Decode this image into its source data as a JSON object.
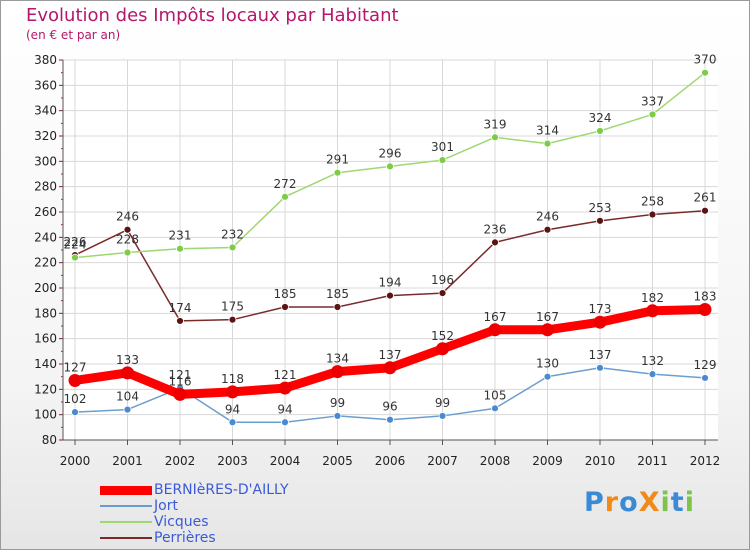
{
  "chart_data": {
    "type": "line",
    "title": "Evolution des Impôts locaux par Habitant",
    "subtitle": "(en € et par an)",
    "xlabel": "",
    "ylabel": "",
    "ylim": [
      80,
      380
    ],
    "yticks": [
      "80",
      "100",
      "120",
      "140",
      "160",
      "180",
      "200",
      "220",
      "240",
      "260",
      "280",
      "300",
      "320",
      "340",
      "360",
      "380"
    ],
    "categories": [
      "2000",
      "2001",
      "2002",
      "2003",
      "2004",
      "2005",
      "2006",
      "2007",
      "2008",
      "2009",
      "2010",
      "2011",
      "2012"
    ],
    "grid": true,
    "series": [
      {
        "name": "BERNIèRES-D'AILLY",
        "color": "#ff0000",
        "marker": "#ee0000",
        "values": [
          127,
          133,
          116,
          118,
          121,
          134,
          137,
          152,
          167,
          167,
          173,
          182,
          183
        ],
        "labels": [
          "127",
          "133",
          "116",
          "118",
          "121",
          "134",
          "137",
          "152",
          "167",
          "167",
          "173",
          "182",
          "183"
        ]
      },
      {
        "name": "Jort",
        "color": "#6b9ed0",
        "marker": "#4a8ad0",
        "values": [
          102,
          104,
          121,
          94,
          94,
          99,
          96,
          99,
          105,
          130,
          137,
          132,
          129
        ],
        "labels": [
          "102",
          "104",
          "121",
          "94",
          "94",
          "99",
          "96",
          "99",
          "105",
          "130",
          "137",
          "132",
          "129"
        ]
      },
      {
        "name": "Vicques",
        "color": "#9ed870",
        "marker": "#7ccc48",
        "values": [
          224,
          228,
          231,
          232,
          272,
          291,
          296,
          301,
          319,
          314,
          324,
          337,
          370
        ],
        "labels": [
          "224",
          "228",
          "231",
          "232",
          "272",
          "291",
          "296",
          "301",
          "319",
          "314",
          "324",
          "337",
          "370"
        ]
      },
      {
        "name": "Perrières",
        "color": "#7a2a2a",
        "marker": "#5a1414",
        "values": [
          226,
          246,
          174,
          175,
          185,
          185,
          194,
          196,
          236,
          246,
          253,
          258,
          261
        ],
        "labels": [
          "226",
          "246",
          "174",
          "175",
          "185",
          "185",
          "194",
          "196",
          "236",
          "246",
          "253",
          "258",
          "261"
        ]
      }
    ]
  },
  "logo": {
    "text": "ProXiti",
    "letters": [
      "P",
      "r",
      "o",
      "X",
      "i",
      "t",
      "i"
    ],
    "colors": [
      "#3a8ad6",
      "#f08a18",
      "#3a8ad6",
      "#f08a18",
      "#7cc44a",
      "#3a8ad6",
      "#7cc44a"
    ]
  }
}
